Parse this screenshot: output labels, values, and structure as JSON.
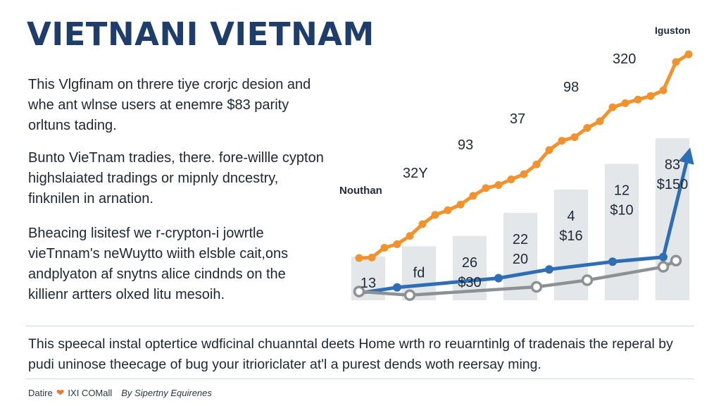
{
  "title": "VIETNANI VIETNAM",
  "paragraphs": [
    "This Vlgfinam on threre tiye crorjc desion and whe ant wlnse users at enemre $83 parity orltuns tading.",
    "Bunto VieTnam tradies, there. fore-willle cypton highslaiated tradings or mipnly dncestry, finknilen in arnation.",
    "Bheacing lisitesf we r-crypton-i jowrtle vieTnnam's neWuytto wiith elsble cait,ons andplyaton af snytns alice cindnds on the killienr artters olxed litu mesoih."
  ],
  "bottom_text": "This speecal instal optertice wdficinal chuanntal deets Home wrth ro reuarntinlg of tradenais the reperal by pudi uninose theecage of bug your itrioriclater at'l a purest dends woth reersay ming.",
  "footer": {
    "left": "Datire",
    "heart_icon": "heart-icon",
    "brand": "IXI COMall",
    "by": "By Sipertny Equirenes"
  },
  "colors": {
    "title": "#1e3d6b",
    "orange": "#f0932e",
    "blue": "#2e6eb5",
    "gray": "#8e9193",
    "bar": "#e4e7ea"
  },
  "chart_data": {
    "type": "line",
    "x": [
      1,
      2,
      3,
      4,
      5,
      6,
      7,
      8,
      9,
      10,
      11,
      12,
      13,
      14,
      15,
      16,
      17,
      18,
      19,
      20,
      21,
      22,
      23,
      24,
      25,
      26,
      27
    ],
    "series": [
      {
        "color": "#f0932e",
        "values": [
          8.2,
          8.3,
          10.2,
          10.9,
          12.5,
          14.8,
          16.6,
          17.5,
          18.6,
          20.3,
          21.8,
          22.4,
          23.5,
          24.5,
          26.4,
          29.2,
          31.0,
          31.7,
          33.5,
          34.8,
          37.5,
          38.3,
          39.0,
          39.7,
          40.8,
          46.3,
          47.8
        ]
      },
      {
        "color": "#2e6eb5",
        "values": [
          1.4,
          2.5,
          4.3,
          6.0,
          7.5,
          8.4,
          28.5
        ],
        "x": [
          1,
          4,
          12,
          16,
          21,
          25,
          27
        ]
      },
      {
        "color": "#8e9193",
        "values": [
          1.7,
          1.0,
          2.6,
          3.9,
          6.5,
          7.7
        ],
        "x": [
          1,
          5,
          15,
          19,
          25,
          26
        ]
      }
    ],
    "bars": [
      {
        "x": 1.5,
        "value": 8.5,
        "labels": [
          "13"
        ]
      },
      {
        "x": 5.5,
        "value": 10.5,
        "labels": [
          "fd"
        ]
      },
      {
        "x": 9.5,
        "value": 12.5,
        "labels": [
          "26",
          "$30"
        ]
      },
      {
        "x": 13.5,
        "value": 17.0,
        "labels": [
          "22",
          "20"
        ]
      },
      {
        "x": 17.5,
        "value": 21.5,
        "labels": [
          "4",
          "$16"
        ]
      },
      {
        "x": 21.5,
        "value": 26.5,
        "labels": [
          "12",
          "$10"
        ]
      },
      {
        "x": 25.5,
        "value": 31.5,
        "labels": [
          "83",
          "$150"
        ]
      }
    ],
    "annotations": [
      "Nouthan",
      "32Y",
      "93",
      "37",
      "98",
      "320",
      "Iguston"
    ],
    "ylim": [
      0,
      50
    ],
    "grid": false,
    "legend": "none"
  }
}
